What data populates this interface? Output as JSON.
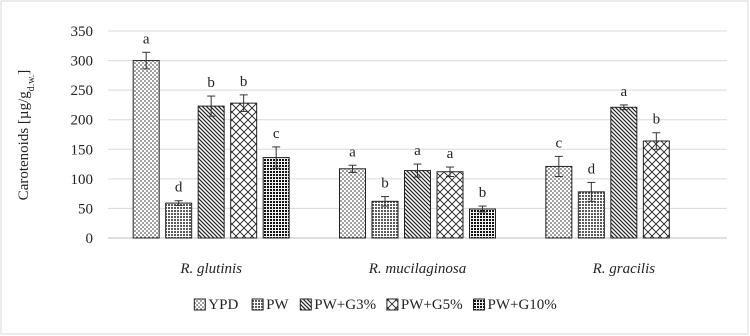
{
  "chart_data": {
    "type": "bar",
    "title": "",
    "xlabel": "",
    "ylabel": "Carotenoids [µg/g",
    "ylabel_sub": "d.w.",
    "ylabel_end": "]",
    "ylim": [
      0,
      350
    ],
    "yticks": [
      0,
      50,
      100,
      150,
      200,
      250,
      300,
      350
    ],
    "grid": true,
    "legend_position": "bottom",
    "categories": [
      "R. glutinis",
      "R. mucilaginosa",
      "R. gracilis"
    ],
    "series": [
      {
        "name": "YPD",
        "values": [
          300,
          117,
          121
        ],
        "errors": [
          14,
          6,
          17
        ],
        "letters": [
          "a",
          "a",
          "c"
        ],
        "pattern": "dots"
      },
      {
        "name": "PW",
        "values": [
          59,
          62,
          78
        ],
        "errors": [
          4,
          8,
          16
        ],
        "letters": [
          "d",
          "b",
          "d"
        ],
        "pattern": "grid"
      },
      {
        "name": "PW+G3%",
        "values": [
          223,
          114,
          221
        ],
        "errors": [
          17,
          11,
          4
        ],
        "letters": [
          "b",
          "a",
          "a"
        ],
        "pattern": "diag"
      },
      {
        "name": "PW+G5%",
        "values": [
          228,
          112,
          164
        ],
        "errors": [
          14,
          8,
          14
        ],
        "letters": [
          "b",
          "a",
          "b"
        ],
        "pattern": "cross"
      },
      {
        "name": "PW+G10%",
        "values": [
          136,
          49,
          0
        ],
        "errors": [
          18,
          5,
          0
        ],
        "letters": [
          "c",
          "b",
          ""
        ],
        "pattern": "dense"
      }
    ]
  }
}
